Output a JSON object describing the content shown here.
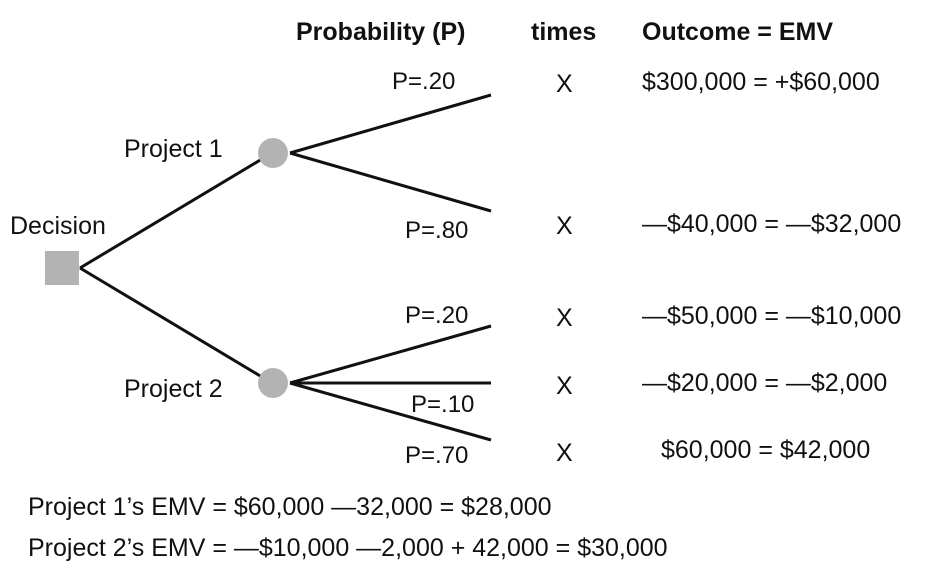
{
  "headers": {
    "probability": "Probability (P)",
    "times": "times",
    "outcome": "Outcome = EMV"
  },
  "nodes": {
    "decision": "Decision",
    "project1": "Project 1",
    "project2": "Project 2"
  },
  "branches": [
    {
      "prob": "P=.20",
      "times": "X",
      "outcome": "$300,000 = +$60,000"
    },
    {
      "prob": "P=.80",
      "times": "X",
      "outcome": "—$40,000 = —$32,000"
    },
    {
      "prob": "P=.20",
      "times": "X",
      "outcome": "—$50,000 = —$10,000"
    },
    {
      "prob": "P=.10",
      "times": "X",
      "outcome": "—$20,000 = —$2,000"
    },
    {
      "prob": "P=.70",
      "times": "X",
      "outcome": "$60,000 = $42,000"
    }
  ],
  "summary": {
    "project1": "Project 1’s EMV = $60,000 —32,000 = $28,000",
    "project2": "Project 2’s EMV = —$10,000 —2,000 + 42,000 = $30,000"
  },
  "colors": {
    "node_fill": "#b3b3b3",
    "line": "#111111"
  }
}
